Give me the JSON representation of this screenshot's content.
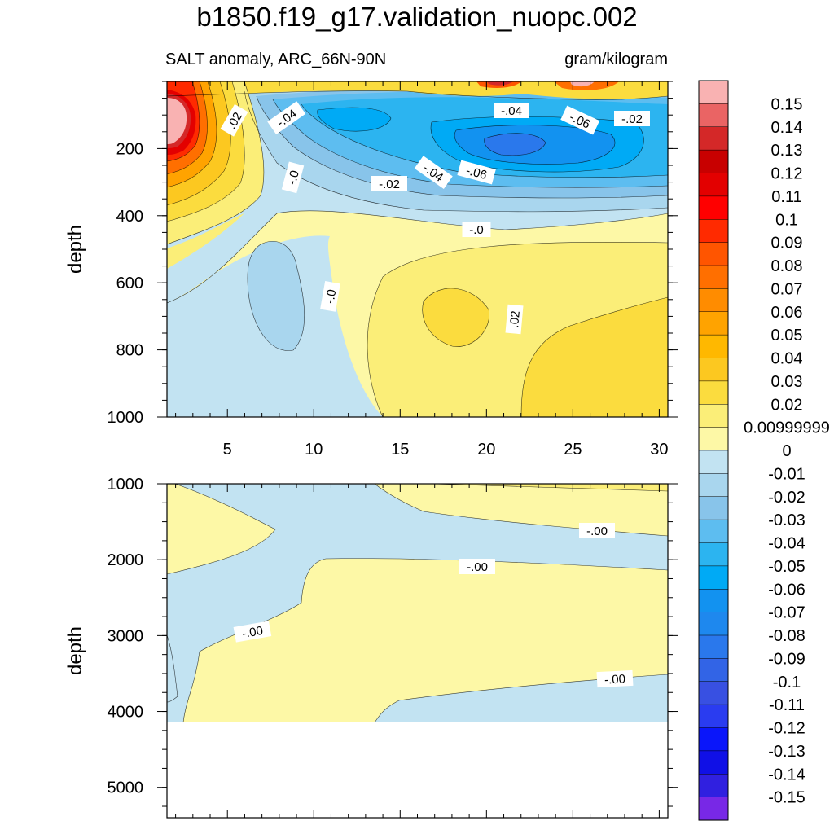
{
  "chart_data": {
    "type": "contour",
    "title": "b1850.f19_g17.validation_nuopc.002",
    "variable_label": "SALT anomaly, ARC_66N-90N",
    "units": "gram/kilogram",
    "xlabel": "",
    "ylabel": "depth",
    "x_ticks": [
      "5",
      "10",
      "15",
      "20",
      "25",
      "30"
    ],
    "xlim": [
      1.5,
      30.5
    ],
    "colorbar": {
      "levels": [
        "0.15",
        "0.14",
        "0.13",
        "0.12",
        "0.11",
        "0.1",
        "0.09",
        "0.08",
        "0.07",
        "0.06",
        "0.05",
        "0.04",
        "0.03",
        "0.02",
        "0.00999999",
        "0",
        "-0.01",
        "-0.02",
        "-0.03",
        "-0.04",
        "-0.05",
        "-0.06",
        "-0.07",
        "-0.08",
        "-0.09",
        "-0.1",
        "-0.11",
        "-0.12",
        "-0.13",
        "-0.14",
        "-0.15"
      ],
      "colors": [
        "#f9b2b2",
        "#ea6464",
        "#d42828",
        "#c80000",
        "#e30000",
        "#ff0000",
        "#ff2a00",
        "#ff5500",
        "#ff6f00",
        "#ff8c00",
        "#ffa300",
        "#ffb800",
        "#fcc820",
        "#fbdc3e",
        "#fbee78",
        "#fdf8a6",
        "#c2e3f2",
        "#a9d6ee",
        "#88c4ea",
        "#5dbdf0",
        "#2cb4f0",
        "#00aaf5",
        "#1292f0",
        "#1e88ee",
        "#2a78ec",
        "#3264e6",
        "#3850e2",
        "#2a3cf0",
        "#0a16fa",
        "#1010e6",
        "#3020e0",
        "#7828e6"
      ]
    },
    "top_panel": {
      "yticks": [
        "200",
        "400",
        "600",
        "800",
        "1000"
      ],
      "ylim": [
        0,
        1000
      ],
      "contour_labels": [
        ".02",
        "-.04",
        "-.04",
        "-.06",
        "-.02",
        "-.0",
        "-.02",
        "-.04",
        "-.06",
        "-.0",
        "-.0",
        ".02"
      ]
    },
    "bottom_panel": {
      "yticks": [
        "1000",
        "2000",
        "3000",
        "4000",
        "5000"
      ],
      "ylim": [
        1000,
        5400
      ],
      "data_bottom_depth": 4120,
      "contour_labels": [
        "-.00",
        "-.00",
        "-.00",
        "-.00"
      ]
    }
  }
}
